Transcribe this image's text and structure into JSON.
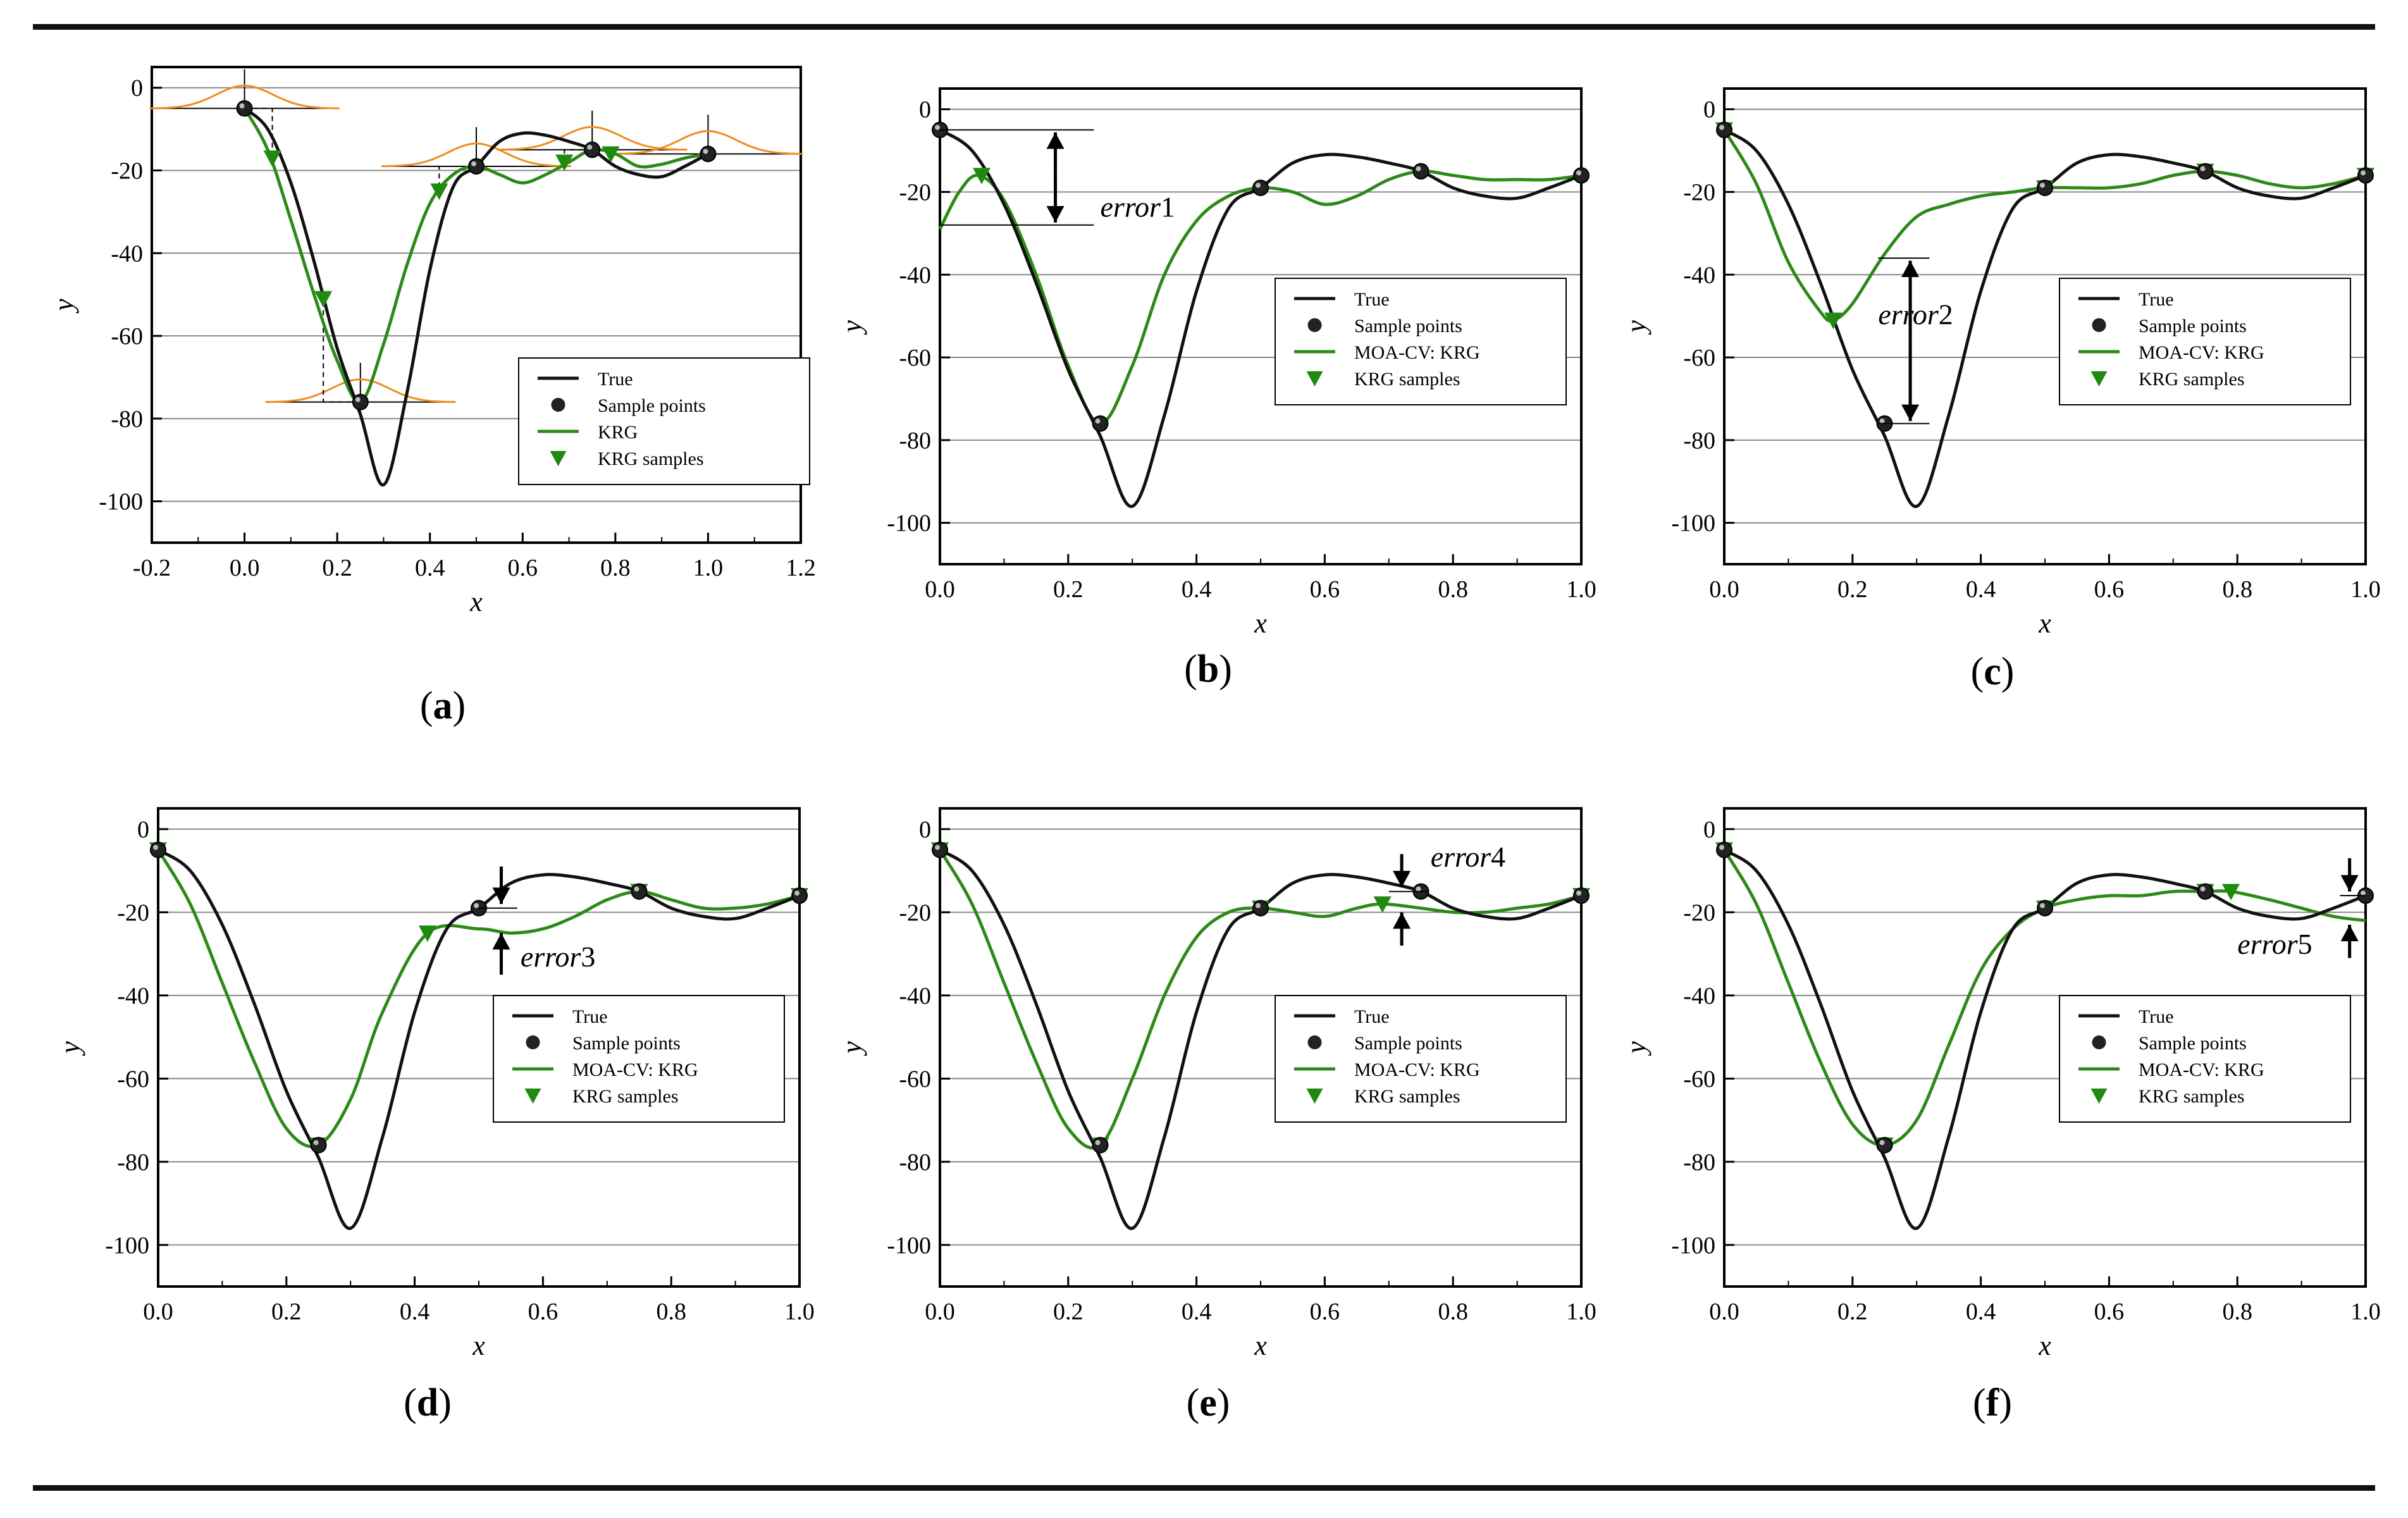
{
  "figure": {
    "colors": {
      "true_curve": "#111111",
      "krg_curve": "#2c8a17",
      "krg_marker": "#1f8a0f",
      "sample_point": "#222222",
      "bell": "#f08c1c",
      "gridline": "#8a8a8a"
    }
  },
  "chart_data": [
    {
      "id": "a",
      "type": "line",
      "panel_label": "a",
      "xlabel": "x",
      "ylabel": "y",
      "xlim": [
        -0.2,
        1.2
      ],
      "ylim": [
        -110,
        5
      ],
      "xticks": [
        "-0.2",
        "0.0",
        "0.2",
        "0.4",
        "0.6",
        "0.8",
        "1.0",
        "1.2"
      ],
      "xtick_values": [
        -0.2,
        0,
        0.2,
        0.4,
        0.6,
        0.8,
        1.0,
        1.2
      ],
      "yticks": [
        "0",
        "-20",
        "-40",
        "-60",
        "-80",
        "-100"
      ],
      "ytick_values": [
        0,
        -20,
        -40,
        -60,
        -80,
        -100
      ],
      "grid": "horizontal",
      "legend_position": "bottom-right",
      "legend": [
        "True",
        "Sample points",
        "KRG",
        "KRG samples"
      ],
      "series": [
        {
          "name": "True",
          "kind": "line",
          "x": [
            0,
            0.05,
            0.1,
            0.15,
            0.2,
            0.25,
            0.3,
            0.35,
            0.4,
            0.45,
            0.5,
            0.55,
            0.6,
            0.65,
            0.7,
            0.75,
            0.8,
            0.85,
            0.9,
            0.95,
            1.0
          ],
          "y": [
            -5,
            -10,
            -23,
            -42,
            -63,
            -79,
            -96,
            -74,
            -44,
            -24,
            -19,
            -13,
            -11,
            -11.5,
            -13,
            -15,
            -19,
            -21,
            -21.5,
            -19,
            -16
          ]
        },
        {
          "name": "Sample points",
          "kind": "points",
          "x": [
            0,
            0.25,
            0.5,
            0.75,
            1.0
          ],
          "y": [
            -5,
            -76,
            -19,
            -15,
            -16
          ]
        },
        {
          "name": "KRG",
          "kind": "line",
          "x": [
            0,
            0.05,
            0.1,
            0.15,
            0.2,
            0.25,
            0.3,
            0.35,
            0.4,
            0.45,
            0.5,
            0.55,
            0.6,
            0.65,
            0.7,
            0.75,
            0.8,
            0.85,
            0.9,
            0.95,
            1.0
          ],
          "y": [
            -5,
            -15,
            -32,
            -50,
            -66,
            -76,
            -62,
            -43,
            -28,
            -21,
            -19,
            -21,
            -23,
            -21,
            -18,
            -15,
            -16,
            -19,
            -18.5,
            -17,
            -16
          ]
        },
        {
          "name": "KRG samples",
          "kind": "triangles",
          "x": [
            0.06,
            0.17,
            0.42,
            0.69,
            0.79
          ],
          "y": [
            -17,
            -51,
            -25,
            -18,
            -16
          ]
        }
      ]
    },
    {
      "id": "b",
      "type": "line",
      "panel_label": "b",
      "xlabel": "x",
      "ylabel": "y",
      "xlim": [
        0,
        1.0
      ],
      "ylim": [
        -110,
        5
      ],
      "xticks": [
        "0.0",
        "0.2",
        "0.4",
        "0.6",
        "0.8",
        "1.0"
      ],
      "xtick_values": [
        0,
        0.2,
        0.4,
        0.6,
        0.8,
        1.0
      ],
      "yticks": [
        "0",
        "-20",
        "-40",
        "-60",
        "-80",
        "-100"
      ],
      "ytick_values": [
        0,
        -20,
        -40,
        -60,
        -80,
        -100
      ],
      "grid": "horizontal",
      "legend_position": "right",
      "legend": [
        "True",
        "Sample points",
        "MOA-CV: KRG",
        "KRG samples"
      ],
      "annotation": {
        "text": "error",
        "number": "1"
      },
      "series": [
        {
          "name": "True",
          "kind": "line",
          "x": [
            0,
            0.05,
            0.1,
            0.15,
            0.2,
            0.25,
            0.3,
            0.35,
            0.4,
            0.45,
            0.5,
            0.55,
            0.6,
            0.65,
            0.7,
            0.75,
            0.8,
            0.85,
            0.9,
            0.95,
            1.0
          ],
          "y": [
            -5,
            -10,
            -23,
            -42,
            -63,
            -79,
            -96,
            -74,
            -44,
            -24,
            -19,
            -13,
            -11,
            -11.5,
            -13,
            -15,
            -19,
            -21,
            -21.5,
            -19,
            -16
          ]
        },
        {
          "name": "Sample points",
          "kind": "points",
          "x": [
            0,
            0.25,
            0.5,
            0.75,
            1.0
          ],
          "y": [
            -5,
            -76,
            -19,
            -15,
            -16
          ]
        },
        {
          "name": "MOA-CV: KRG",
          "kind": "line",
          "x": [
            0,
            0.03,
            0.06,
            0.1,
            0.15,
            0.2,
            0.25,
            0.3,
            0.35,
            0.4,
            0.45,
            0.5,
            0.55,
            0.6,
            0.65,
            0.7,
            0.75,
            0.8,
            0.85,
            0.9,
            0.95,
            1.0
          ],
          "y": [
            -29,
            -20,
            -16,
            -22,
            -40,
            -62,
            -76,
            -62,
            -40,
            -27,
            -21,
            -19,
            -20,
            -23,
            -21,
            -17,
            -15,
            -16,
            -17,
            -17,
            -17,
            -16
          ]
        },
        {
          "name": "KRG samples",
          "kind": "triangles",
          "x": [
            0.065
          ],
          "y": [
            -16
          ]
        }
      ]
    },
    {
      "id": "c",
      "type": "line",
      "panel_label": "c",
      "xlabel": "x",
      "ylabel": "y",
      "xlim": [
        0,
        1.0
      ],
      "ylim": [
        -110,
        5
      ],
      "xticks": [
        "0.0",
        "0.2",
        "0.4",
        "0.6",
        "0.8",
        "1.0"
      ],
      "xtick_values": [
        0,
        0.2,
        0.4,
        0.6,
        0.8,
        1.0
      ],
      "yticks": [
        "0",
        "-20",
        "-40",
        "-60",
        "-80",
        "-100"
      ],
      "ytick_values": [
        0,
        -20,
        -40,
        -60,
        -80,
        -100
      ],
      "grid": "horizontal",
      "legend_position": "right",
      "legend": [
        "True",
        "Sample points",
        "MOA-CV: KRG",
        "KRG samples"
      ],
      "annotation": {
        "text": "error",
        "number": "2"
      },
      "series": [
        {
          "name": "True",
          "kind": "line",
          "x": [
            0,
            0.05,
            0.1,
            0.15,
            0.2,
            0.25,
            0.3,
            0.35,
            0.4,
            0.45,
            0.5,
            0.55,
            0.6,
            0.65,
            0.7,
            0.75,
            0.8,
            0.85,
            0.9,
            0.95,
            1.0
          ],
          "y": [
            -5,
            -10,
            -23,
            -42,
            -63,
            -79,
            -96,
            -74,
            -44,
            -24,
            -19,
            -13,
            -11,
            -11.5,
            -13,
            -15,
            -19,
            -21,
            -21.5,
            -19,
            -16
          ]
        },
        {
          "name": "Sample points",
          "kind": "points",
          "x": [
            0,
            0.25,
            0.5,
            0.75,
            1.0
          ],
          "y": [
            -5,
            -76,
            -19,
            -15,
            -16
          ]
        },
        {
          "name": "MOA-CV: KRG",
          "kind": "line",
          "x": [
            0,
            0.05,
            0.1,
            0.15,
            0.17,
            0.2,
            0.25,
            0.3,
            0.35,
            0.4,
            0.45,
            0.5,
            0.55,
            0.6,
            0.65,
            0.7,
            0.75,
            0.8,
            0.85,
            0.9,
            0.95,
            1.0
          ],
          "y": [
            -5,
            -18,
            -37,
            -49,
            -51,
            -47,
            -35,
            -26,
            -23,
            -21,
            -20,
            -19,
            -19,
            -19,
            -18,
            -16,
            -15,
            -16,
            -18,
            -19,
            -18,
            -16
          ]
        },
        {
          "name": "KRG samples",
          "kind": "triangles",
          "x": [
            0,
            0.17,
            0.5,
            0.75,
            1.0
          ],
          "y": [
            -5,
            -51,
            -19,
            -15,
            -16
          ]
        }
      ]
    },
    {
      "id": "d",
      "type": "line",
      "panel_label": "d",
      "xlabel": "x",
      "ylabel": "y",
      "xlim": [
        0,
        1.0
      ],
      "ylim": [
        -110,
        5
      ],
      "xticks": [
        "0.0",
        "0.2",
        "0.4",
        "0.6",
        "0.8",
        "1.0"
      ],
      "xtick_values": [
        0,
        0.2,
        0.4,
        0.6,
        0.8,
        1.0
      ],
      "yticks": [
        "0",
        "-20",
        "-40",
        "-60",
        "-80",
        "-100"
      ],
      "ytick_values": [
        0,
        -20,
        -40,
        -60,
        -80,
        -100
      ],
      "grid": "horizontal",
      "legend_position": "right",
      "legend": [
        "True",
        "Sample points",
        "MOA-CV: KRG",
        "KRG samples"
      ],
      "annotation": {
        "text": "error",
        "number": "3"
      },
      "series": [
        {
          "name": "True",
          "kind": "line",
          "x": [
            0,
            0.05,
            0.1,
            0.15,
            0.2,
            0.25,
            0.3,
            0.35,
            0.4,
            0.45,
            0.5,
            0.55,
            0.6,
            0.65,
            0.7,
            0.75,
            0.8,
            0.85,
            0.9,
            0.95,
            1.0
          ],
          "y": [
            -5,
            -10,
            -23,
            -42,
            -63,
            -79,
            -96,
            -74,
            -44,
            -24,
            -19,
            -13,
            -11,
            -11.5,
            -13,
            -15,
            -19,
            -21,
            -21.5,
            -19,
            -16
          ]
        },
        {
          "name": "Sample points",
          "kind": "points",
          "x": [
            0,
            0.25,
            0.5,
            0.75,
            1.0
          ],
          "y": [
            -5,
            -76,
            -19,
            -15,
            -16
          ]
        },
        {
          "name": "MOA-CV: KRG",
          "kind": "line",
          "x": [
            0,
            0.05,
            0.1,
            0.15,
            0.2,
            0.25,
            0.3,
            0.35,
            0.42,
            0.5,
            0.55,
            0.6,
            0.65,
            0.7,
            0.75,
            0.8,
            0.85,
            0.9,
            0.95,
            1.0
          ],
          "y": [
            -5,
            -18,
            -37,
            -56,
            -72,
            -76,
            -65,
            -44,
            -25,
            -24,
            -25,
            -24,
            -21,
            -17,
            -15,
            -17,
            -19,
            -19,
            -18,
            -16
          ]
        },
        {
          "name": "KRG samples",
          "kind": "triangles",
          "x": [
            0,
            0.25,
            0.42,
            0.75,
            1.0
          ],
          "y": [
            -5,
            -76,
            -25,
            -15,
            -16
          ]
        }
      ]
    },
    {
      "id": "e",
      "type": "line",
      "panel_label": "e",
      "xlabel": "x",
      "ylabel": "y",
      "xlim": [
        0,
        1.0
      ],
      "ylim": [
        -110,
        5
      ],
      "xticks": [
        "0.0",
        "0.2",
        "0.4",
        "0.6",
        "0.8",
        "1.0"
      ],
      "xtick_values": [
        0,
        0.2,
        0.4,
        0.6,
        0.8,
        1.0
      ],
      "yticks": [
        "0",
        "-20",
        "-40",
        "-60",
        "-80",
        "-100"
      ],
      "ytick_values": [
        0,
        -20,
        -40,
        -60,
        -80,
        -100
      ],
      "grid": "horizontal",
      "legend_position": "right",
      "legend": [
        "True",
        "Sample points",
        "MOA-CV: KRG",
        "KRG samples"
      ],
      "annotation": {
        "text": "error",
        "number": "4"
      },
      "series": [
        {
          "name": "True",
          "kind": "line",
          "x": [
            0,
            0.05,
            0.1,
            0.15,
            0.2,
            0.25,
            0.3,
            0.35,
            0.4,
            0.45,
            0.5,
            0.55,
            0.6,
            0.65,
            0.7,
            0.75,
            0.8,
            0.85,
            0.9,
            0.95,
            1.0
          ],
          "y": [
            -5,
            -10,
            -23,
            -42,
            -63,
            -79,
            -96,
            -74,
            -44,
            -24,
            -19,
            -13,
            -11,
            -11.5,
            -13,
            -15,
            -19,
            -21,
            -21.5,
            -19,
            -16
          ]
        },
        {
          "name": "Sample points",
          "kind": "points",
          "x": [
            0,
            0.25,
            0.5,
            0.75,
            1.0
          ],
          "y": [
            -5,
            -76,
            -19,
            -15,
            -16
          ]
        },
        {
          "name": "MOA-CV: KRG",
          "kind": "line",
          "x": [
            0,
            0.05,
            0.1,
            0.15,
            0.2,
            0.25,
            0.3,
            0.35,
            0.4,
            0.45,
            0.5,
            0.55,
            0.6,
            0.65,
            0.69,
            0.75,
            0.8,
            0.85,
            0.9,
            0.95,
            1.0
          ],
          "y": [
            -5,
            -18,
            -37,
            -56,
            -72,
            -76,
            -60,
            -40,
            -26,
            -20,
            -19,
            -20,
            -21,
            -19,
            -18,
            -19,
            -20,
            -20,
            -19,
            -18,
            -16
          ]
        },
        {
          "name": "KRG samples",
          "kind": "triangles",
          "x": [
            0,
            0.25,
            0.5,
            0.69,
            1.0
          ],
          "y": [
            -5,
            -76,
            -19,
            -18,
            -16
          ]
        }
      ]
    },
    {
      "id": "f",
      "type": "line",
      "panel_label": "f",
      "xlabel": "x",
      "ylabel": "y",
      "xlim": [
        0,
        1.0
      ],
      "ylim": [
        -110,
        5
      ],
      "xticks": [
        "0.0",
        "0.2",
        "0.4",
        "0.6",
        "0.8",
        "1.0"
      ],
      "xtick_values": [
        0,
        0.2,
        0.4,
        0.6,
        0.8,
        1.0
      ],
      "yticks": [
        "0",
        "-20",
        "-40",
        "-60",
        "-80",
        "-100"
      ],
      "ytick_values": [
        0,
        -20,
        -40,
        -60,
        -80,
        -100
      ],
      "grid": "horizontal",
      "legend_position": "right",
      "legend": [
        "True",
        "Sample points",
        "MOA-CV: KRG",
        "KRG samples"
      ],
      "annotation": {
        "text": "error",
        "number": "5"
      },
      "series": [
        {
          "name": "True",
          "kind": "line",
          "x": [
            0,
            0.05,
            0.1,
            0.15,
            0.2,
            0.25,
            0.3,
            0.35,
            0.4,
            0.45,
            0.5,
            0.55,
            0.6,
            0.65,
            0.7,
            0.75,
            0.8,
            0.85,
            0.9,
            0.95,
            1.0
          ],
          "y": [
            -5,
            -10,
            -23,
            -42,
            -63,
            -79,
            -96,
            -74,
            -44,
            -24,
            -19,
            -13,
            -11,
            -11.5,
            -13,
            -15,
            -19,
            -21,
            -21.5,
            -19,
            -16
          ]
        },
        {
          "name": "Sample points",
          "kind": "points",
          "x": [
            0,
            0.25,
            0.5,
            0.75,
            1.0
          ],
          "y": [
            -5,
            -76,
            -19,
            -15,
            -16
          ]
        },
        {
          "name": "MOA-CV: KRG",
          "kind": "line",
          "x": [
            0,
            0.05,
            0.1,
            0.15,
            0.2,
            0.25,
            0.3,
            0.35,
            0.4,
            0.45,
            0.5,
            0.55,
            0.6,
            0.65,
            0.7,
            0.75,
            0.79,
            0.85,
            0.9,
            0.95,
            1.0
          ],
          "y": [
            -5,
            -18,
            -37,
            -56,
            -71,
            -76,
            -70,
            -52,
            -34,
            -24,
            -19,
            -17,
            -16,
            -16,
            -15,
            -15,
            -15,
            -17,
            -19,
            -21,
            -22
          ]
        },
        {
          "name": "KRG samples",
          "kind": "triangles",
          "x": [
            0,
            0.25,
            0.5,
            0.75,
            0.79
          ],
          "y": [
            -5,
            -76,
            -19,
            -15,
            -15
          ]
        }
      ]
    }
  ]
}
